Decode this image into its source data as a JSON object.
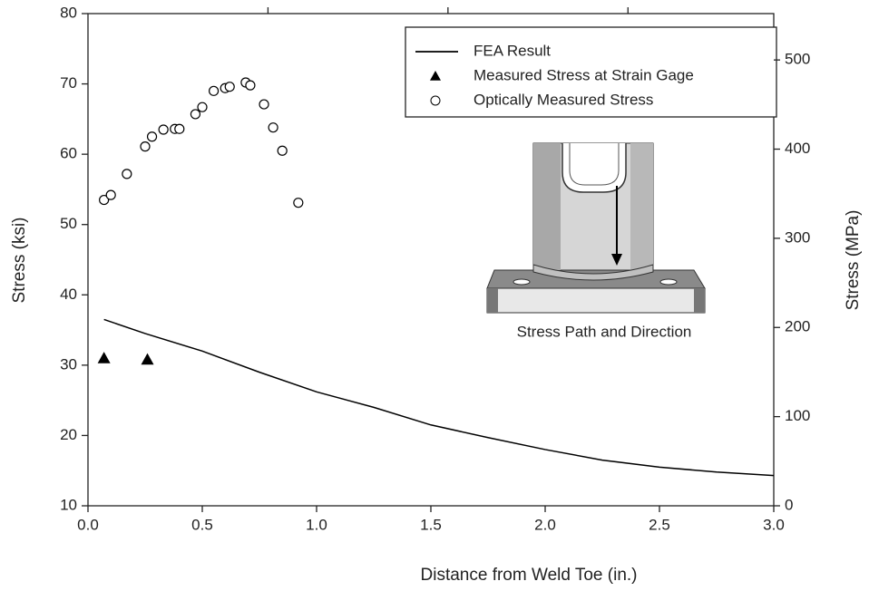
{
  "chart_data": {
    "type": "scatter-line",
    "xlabel": "Distance from Weld Toe (in.)",
    "ylabel": "Stress (ksi)",
    "y2label": "Stress (MPa)",
    "annotation": "Stress Path and Direction",
    "xlim": [
      0,
      3
    ],
    "xticks": [
      {
        "value": 0,
        "label": "0.0"
      },
      {
        "value": 0.5,
        "label": "0.5"
      },
      {
        "value": 1,
        "label": "1.0"
      },
      {
        "value": 1.5,
        "label": "1.5"
      },
      {
        "value": 2,
        "label": "2.0"
      },
      {
        "value": 2.5,
        "label": "2.5"
      },
      {
        "value": 3,
        "label": "3.0"
      }
    ],
    "x2lim": [
      0,
      76.2
    ],
    "x2ticks": [
      20,
      40,
      60
    ],
    "ylim": [
      10,
      80
    ],
    "yticks": [
      10,
      20,
      30,
      40,
      50,
      60,
      70,
      80
    ],
    "y2lim": [
      0,
      552
    ],
    "y2ticks": [
      0,
      100,
      200,
      300,
      400,
      500
    ],
    "series": [
      {
        "name": "FEA Result",
        "kind": "line",
        "color": "#000000",
        "x": [
          0.07,
          0.25,
          0.5,
          0.75,
          1.0,
          1.25,
          1.5,
          1.75,
          2.0,
          2.25,
          2.5,
          2.75,
          3.0
        ],
        "values": [
          36.5,
          34.5,
          32,
          29,
          26.2,
          24,
          21.5,
          19.7,
          18,
          16.5,
          15.5,
          14.8,
          14.3
        ]
      },
      {
        "name": "Measured Stress at Strain Gage",
        "kind": "triangle",
        "color": "#000000",
        "x": [
          0.07,
          0.26
        ],
        "values": [
          31,
          30.8
        ]
      },
      {
        "name": "Optically Measured Stress",
        "kind": "circle",
        "color": "#000000",
        "x": [
          0.07,
          0.1,
          0.17,
          0.25,
          0.28,
          0.33,
          0.38,
          0.4,
          0.47,
          0.5,
          0.55,
          0.6,
          0.62,
          0.69,
          0.71,
          0.77,
          0.81,
          0.85,
          0.92
        ],
        "values": [
          53.5,
          54.2,
          57.2,
          61.1,
          62.5,
          63.5,
          63.6,
          63.6,
          65.7,
          66.7,
          69,
          69.4,
          69.6,
          70.2,
          69.8,
          67.1,
          63.8,
          60.5,
          53.1
        ]
      }
    ]
  }
}
